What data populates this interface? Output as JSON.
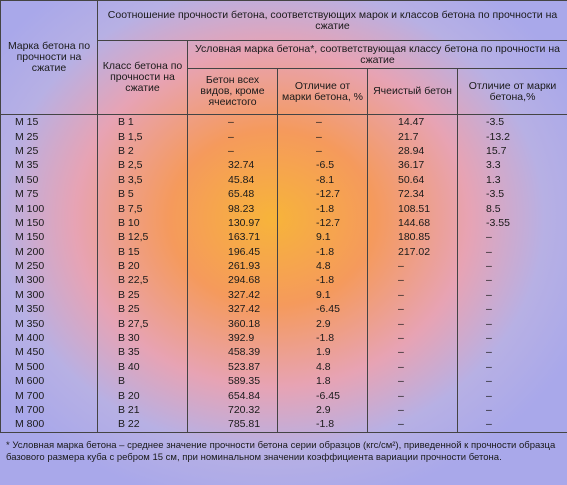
{
  "table": {
    "header": {
      "grade": "Марка бетона по прочности на сжатие",
      "ratio": "Соотношение прочности бетона, соответствующих марок и классов бетона по прочности на сжатие",
      "class": "Класс бетона по прочности на сжатие",
      "conditional": "Условная марка бетона*, соответствующая классу бетона по прочности на сжатие",
      "all_types": "Бетон всех видов, кроме ячеистого",
      "diff1": "Отличие от марки бетона, %",
      "cellular": "Ячеистый бетон",
      "diff2": "Отличие от марки бетона,%"
    },
    "rows": [
      [
        "М 15",
        "В 1",
        "–",
        "–",
        14.47,
        -3.5
      ],
      [
        "М 25",
        "В 1,5",
        "–",
        "–",
        21.7,
        -13.2
      ],
      [
        "М 25",
        "В 2",
        "–",
        "–",
        28.94,
        15.7
      ],
      [
        "М 35",
        "В 2,5",
        32.74,
        -6.5,
        36.17,
        3.3
      ],
      [
        "М 50",
        "В 3,5",
        45.84,
        -8.1,
        50.64,
        1.3
      ],
      [
        "М 75",
        "В 5",
        65.48,
        -12.7,
        72.34,
        -3.5
      ],
      [
        "М 100",
        "В 7,5",
        98.23,
        -1.8,
        108.51,
        8.5
      ],
      [
        "М 150",
        "В 10",
        130.97,
        -12.7,
        144.68,
        -3.55
      ],
      [
        "М 150",
        "В 12,5",
        163.71,
        9.1,
        180.85,
        "–"
      ],
      [
        "М 200",
        "В 15",
        196.45,
        -1.8,
        217.02,
        "–"
      ],
      [
        "М 250",
        "В 20",
        261.93,
        4.8,
        "–",
        "–"
      ],
      [
        "М 300",
        "В 22,5",
        294.68,
        -1.8,
        "–",
        "–"
      ],
      [
        "М 300",
        "В 25",
        327.42,
        9.1,
        "–",
        "–"
      ],
      [
        "М 350",
        "В 25",
        327.42,
        -6.45,
        "–",
        "–"
      ],
      [
        "М 350",
        "В 27,5",
        360.18,
        2.9,
        "–",
        "–"
      ],
      [
        "М 400",
        "В 30",
        392.9,
        -1.8,
        "–",
        "–"
      ],
      [
        "М 450",
        "В 35",
        458.39,
        1.9,
        "–",
        "–"
      ],
      [
        "М 500",
        "В 40",
        523.87,
        4.8,
        "–",
        "–"
      ],
      [
        "М 600",
        "В",
        589.35,
        1.8,
        "–",
        "–"
      ],
      [
        "М 700",
        "В 20",
        654.84,
        -6.45,
        "–",
        "–"
      ],
      [
        "М 700",
        "В 21",
        720.32,
        2.9,
        "–",
        "–"
      ],
      [
        "М 800",
        "В 22",
        785.81,
        -1.8,
        "–",
        "–"
      ]
    ],
    "footnote": "* Условная марка бетона – среднее значение прочности бетона серии образцов (кгс/см²), приведенной к прочности образца базового размера куба с ребром 15 см, при номинальном значении коэффициента вариации прочности бетона."
  }
}
